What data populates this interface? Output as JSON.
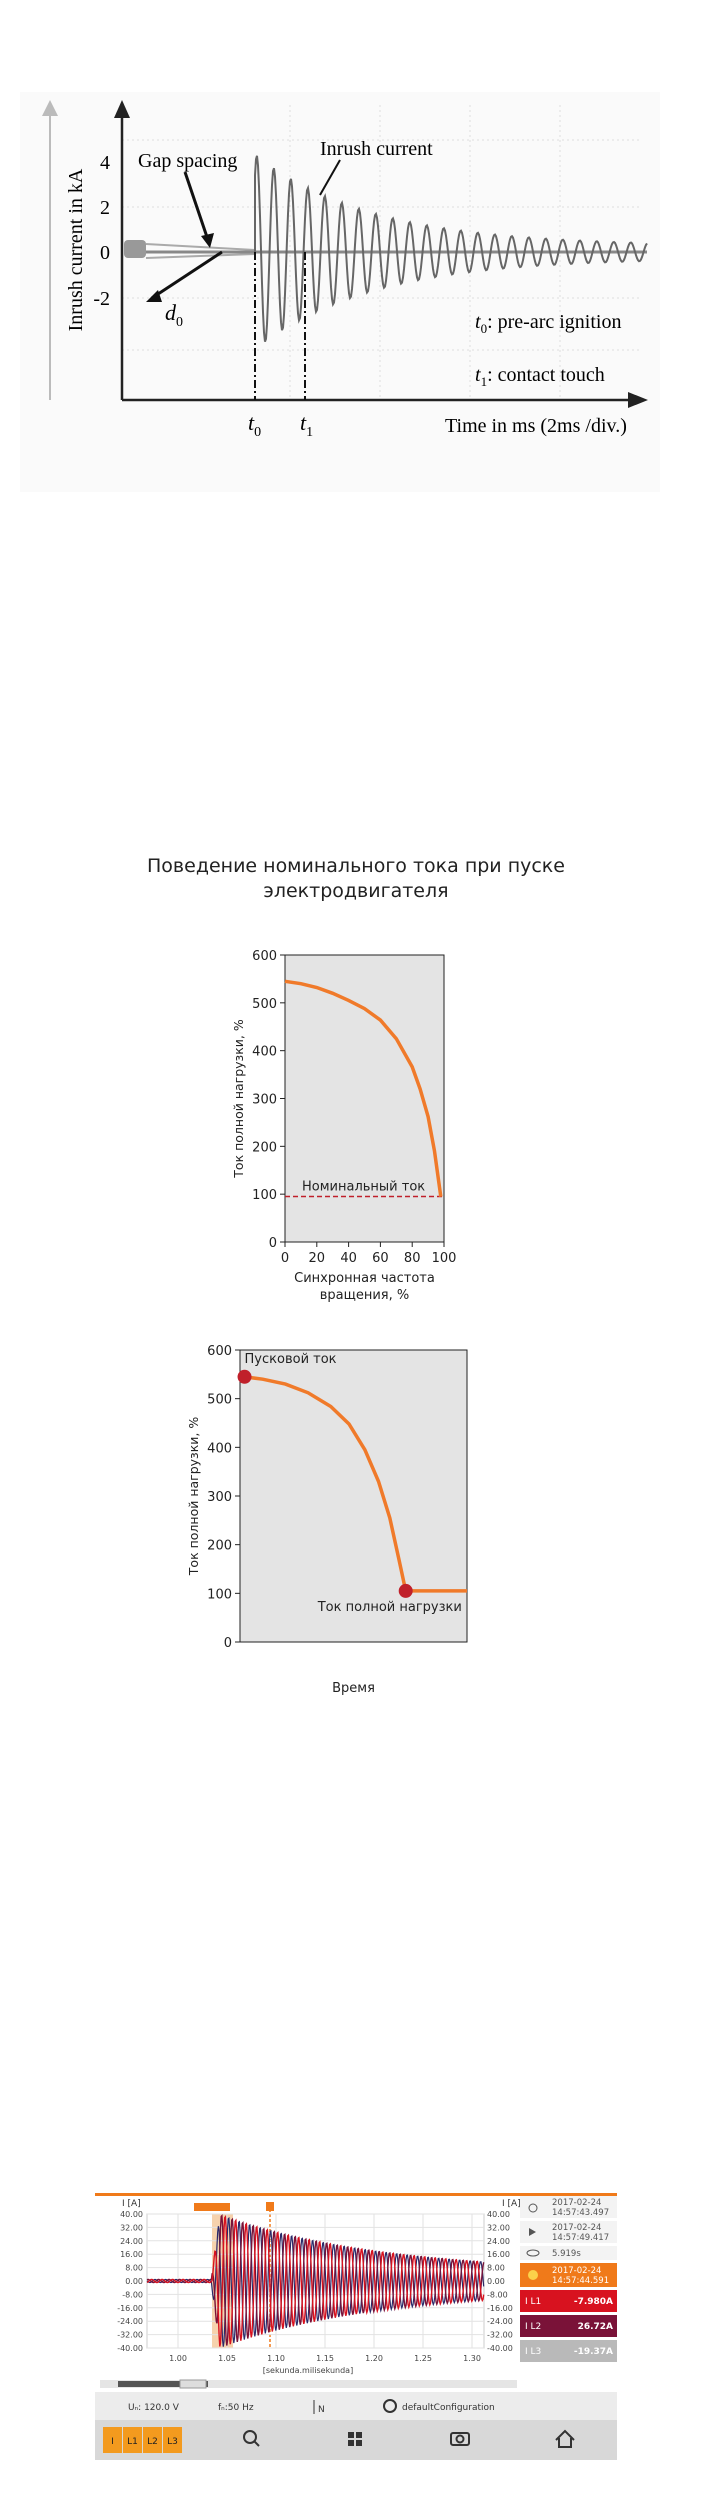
{
  "inrush_diagram": {
    "y_label": "Inrush current in kA",
    "yticks": [
      "4",
      "2",
      "0",
      "-2"
    ],
    "gap_spacing": "Gap spacing",
    "inrush_current": "Inrush current",
    "d_main": "d",
    "d_sub": "0",
    "t0_main": "t",
    "t0_sub": "0",
    "t0_text": ": pre-arc ignition",
    "t1_main": "t",
    "t1_sub": "1",
    "t1_text": ": contact touch",
    "x_label": "Time in ms (2ms /div.)"
  },
  "title": "Поведение номинального тока при пуске электродвигателя",
  "chart_data": [
    {
      "type": "line",
      "x_label": "Синхронная частота вращения, %",
      "y_label": "Ток полной нагрузки, %",
      "xlim": [
        0,
        100
      ],
      "xticks": [
        0,
        20,
        40,
        60,
        80,
        100
      ],
      "ylim": [
        0,
        600
      ],
      "yticks": [
        0,
        100,
        200,
        300,
        400,
        500,
        600
      ],
      "x": [
        0,
        10,
        20,
        30,
        40,
        50,
        60,
        70,
        80,
        85,
        90,
        94,
        98
      ],
      "series": [
        {
          "color": "#f07a2a",
          "values": [
            545,
            540,
            532,
            520,
            505,
            488,
            464,
            425,
            366,
            320,
            262,
            190,
            95
          ]
        }
      ],
      "reference_line": {
        "value": 95,
        "label": "Номинальный ток",
        "color": "#c0202a"
      }
    },
    {
      "type": "line",
      "x_label": "Время",
      "y_label": "Ток полной нагрузки, %",
      "xlim": [
        0,
        100
      ],
      "ylim": [
        0,
        600
      ],
      "yticks": [
        0,
        100,
        200,
        300,
        400,
        500,
        600
      ],
      "x": [
        2,
        10,
        20,
        30,
        40,
        48,
        55,
        61,
        66,
        70,
        73,
        80,
        90,
        100
      ],
      "series": [
        {
          "color": "#f07a2a",
          "values": [
            545,
            540,
            530,
            512,
            484,
            448,
            395,
            330,
            255,
            170,
            105,
            105,
            105,
            105
          ]
        }
      ],
      "points": {
        "x": [
          2,
          73
        ],
        "values": [
          545,
          105
        ],
        "labels": [
          "Пусковой ток",
          "Ток полной нагрузки"
        ],
        "color": "#c0202a"
      }
    }
  ],
  "instrument": {
    "y_unit": "I [A]",
    "yticks": [
      "40.00",
      "32.00",
      "24.00",
      "16.00",
      "8.00",
      "0.00",
      "-8.00",
      "-16.00",
      "-24.00",
      "-32.00",
      "-40.00"
    ],
    "xticks": [
      "1.00",
      "1.05",
      "1.10",
      "1.15",
      "1.20",
      "1.25",
      "1.30"
    ],
    "x_label": "[sekunda.milisekunda]",
    "time_a": [
      "2017-02-24",
      "14:57:43.497"
    ],
    "time_b": [
      "2017-02-24",
      "14:57:49.417"
    ],
    "duration": "5.919s",
    "cursor_time": [
      "2017-02-24",
      "14:57:44.591"
    ],
    "readings": [
      {
        "phase": "I L1",
        "value": "-7.980A",
        "color": "#d8121f"
      },
      {
        "phase": "I L2",
        "value": "26.72A",
        "color": "#7a1238"
      },
      {
        "phase": "I L3",
        "value": "-19.37A",
        "color": "#b9b9b9"
      }
    ],
    "voltage": "Uₙ: 120.0 V",
    "frequency": "fₙ:50 Hz",
    "neutral": "N",
    "configuration": "defaultConfiguration",
    "phase_buttons": [
      "I",
      "L1",
      "L2",
      "L3"
    ]
  }
}
